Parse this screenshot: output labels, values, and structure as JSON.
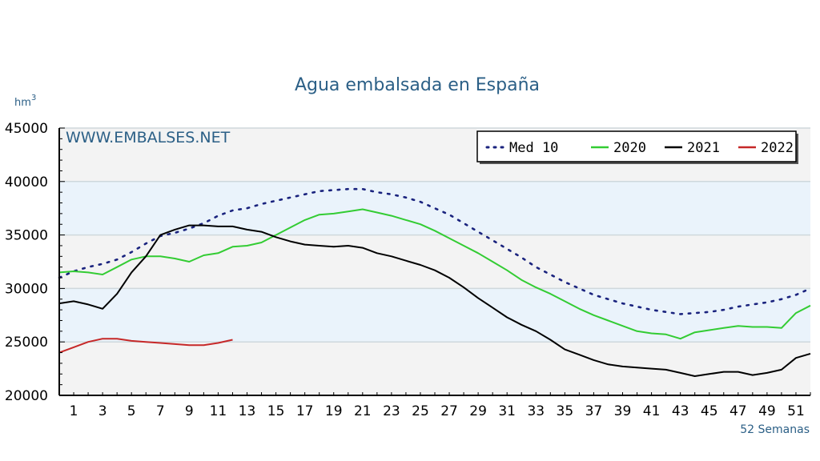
{
  "chart_data": {
    "type": "line",
    "title": "Agua embalsada en España",
    "unit_label": "hm",
    "unit_superscript": "3",
    "watermark": "WWW.EMBALSES.NET",
    "footnote": "52 Semanas",
    "ylim": [
      20000,
      45000
    ],
    "yticks": [
      20000,
      25000,
      30000,
      35000,
      40000,
      45000
    ],
    "xlim": [
      0,
      52
    ],
    "xticks": [
      1,
      3,
      5,
      7,
      9,
      11,
      13,
      15,
      17,
      19,
      21,
      23,
      25,
      27,
      29,
      31,
      33,
      35,
      37,
      39,
      41,
      43,
      45,
      47,
      49,
      51
    ],
    "legend_position": "top-right",
    "background_bands": [
      {
        "from": 20000,
        "to": 25000,
        "color": "#f3f3f3"
      },
      {
        "from": 25000,
        "to": 30000,
        "color": "#eaf3fb"
      },
      {
        "from": 30000,
        "to": 35000,
        "color": "#f3f3f3"
      },
      {
        "from": 35000,
        "to": 40000,
        "color": "#eaf3fb"
      },
      {
        "from": 40000,
        "to": 45000,
        "color": "#f3f3f3"
      }
    ],
    "series": [
      {
        "name": "Med 10",
        "color": "#1a237e",
        "style": "dotted",
        "x": [
          0,
          1,
          2,
          3,
          4,
          5,
          6,
          7,
          8,
          9,
          10,
          11,
          12,
          13,
          14,
          15,
          16,
          17,
          18,
          19,
          20,
          21,
          22,
          23,
          24,
          25,
          26,
          27,
          28,
          29,
          30,
          31,
          32,
          33,
          34,
          35,
          36,
          37,
          38,
          39,
          40,
          41,
          42,
          43,
          44,
          45,
          46,
          47,
          48,
          49,
          50,
          51,
          52
        ],
        "values": [
          31000,
          31600,
          32000,
          32300,
          32700,
          33400,
          34200,
          34900,
          35200,
          35600,
          36100,
          36800,
          37300,
          37500,
          37900,
          38200,
          38500,
          38800,
          39100,
          39200,
          39300,
          39300,
          39000,
          38800,
          38500,
          38100,
          37500,
          36900,
          36100,
          35300,
          34500,
          33700,
          32900,
          32000,
          31300,
          30600,
          30000,
          29400,
          29000,
          28600,
          28300,
          28000,
          27800,
          27600,
          27700,
          27800,
          28000,
          28300,
          28500,
          28700,
          29000,
          29400,
          30000
        ]
      },
      {
        "name": "2020",
        "color": "#33cc33",
        "style": "solid",
        "x": [
          0,
          1,
          2,
          3,
          4,
          5,
          6,
          7,
          8,
          9,
          10,
          11,
          12,
          13,
          14,
          15,
          16,
          17,
          18,
          19,
          20,
          21,
          22,
          23,
          24,
          25,
          26,
          27,
          28,
          29,
          30,
          31,
          32,
          33,
          34,
          35,
          36,
          37,
          38,
          39,
          40,
          41,
          42,
          43,
          44,
          45,
          46,
          47,
          48,
          49,
          50,
          51,
          52
        ],
        "values": [
          31500,
          31600,
          31500,
          31300,
          32000,
          32700,
          33000,
          33000,
          32800,
          32500,
          33100,
          33300,
          33900,
          34000,
          34300,
          35000,
          35700,
          36400,
          36900,
          37000,
          37200,
          37400,
          37100,
          36800,
          36400,
          36000,
          35400,
          34700,
          34000,
          33300,
          32500,
          31700,
          30800,
          30100,
          29500,
          28800,
          28100,
          27500,
          27000,
          26500,
          26000,
          25800,
          25700,
          25300,
          25900,
          26100,
          26300,
          26500,
          26400,
          26400,
          26300,
          27700,
          28400
        ]
      },
      {
        "name": "2021",
        "color": "#000000",
        "style": "solid",
        "x": [
          0,
          1,
          2,
          3,
          4,
          5,
          6,
          7,
          8,
          9,
          10,
          11,
          12,
          13,
          14,
          15,
          16,
          17,
          18,
          19,
          20,
          21,
          22,
          23,
          24,
          25,
          26,
          27,
          28,
          29,
          30,
          31,
          32,
          33,
          34,
          35,
          36,
          37,
          38,
          39,
          40,
          41,
          42,
          43,
          44,
          45,
          46,
          47,
          48,
          49,
          50,
          51,
          52
        ],
        "values": [
          28600,
          28800,
          28500,
          28100,
          29500,
          31500,
          33000,
          35000,
          35500,
          35900,
          35900,
          35800,
          35800,
          35500,
          35300,
          34800,
          34400,
          34100,
          34000,
          33900,
          34000,
          33800,
          33300,
          33000,
          32600,
          32200,
          31700,
          31000,
          30100,
          29100,
          28200,
          27300,
          26600,
          26000,
          25200,
          24300,
          23800,
          23300,
          22900,
          22700,
          22600,
          22500,
          22400,
          22100,
          21800,
          22000,
          22200,
          22200,
          21900,
          22100,
          22400,
          23500,
          23900
        ]
      },
      {
        "name": "2022",
        "color": "#c62828",
        "style": "solid",
        "x": [
          0,
          1,
          2,
          3,
          4,
          5,
          6,
          7,
          8,
          9,
          10,
          11,
          12
        ],
        "values": [
          24000,
          24500,
          25000,
          25300,
          25300,
          25100,
          25000,
          24900,
          24800,
          24700,
          24700,
          24900,
          25200
        ]
      }
    ]
  }
}
